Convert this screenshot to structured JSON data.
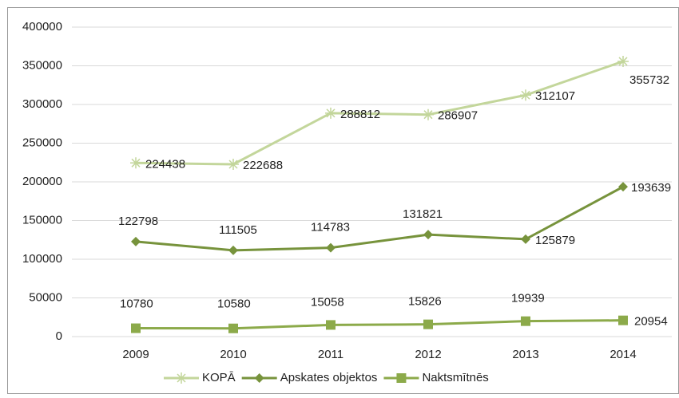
{
  "chart_data": {
    "type": "line",
    "categories": [
      "2009",
      "2010",
      "2011",
      "2012",
      "2013",
      "2014"
    ],
    "series": [
      {
        "name": "KOPĀ",
        "color": "#c3d69b",
        "marker": "star",
        "values": [
          224438,
          222688,
          288812,
          286907,
          312107,
          355732
        ]
      },
      {
        "name": "Apskates objektos",
        "color": "#77933c",
        "marker": "diamond",
        "values": [
          122798,
          111505,
          114783,
          131821,
          125879,
          193639
        ]
      },
      {
        "name": "Naktsmītnēs",
        "color": "#8caa4a",
        "marker": "square",
        "values": [
          10780,
          10580,
          15058,
          15826,
          19939,
          20954
        ]
      }
    ],
    "ylim": [
      0,
      400000
    ],
    "yticks": [
      0,
      50000,
      100000,
      150000,
      200000,
      250000,
      300000,
      350000,
      400000
    ],
    "grid": true,
    "legend": "bottom"
  }
}
